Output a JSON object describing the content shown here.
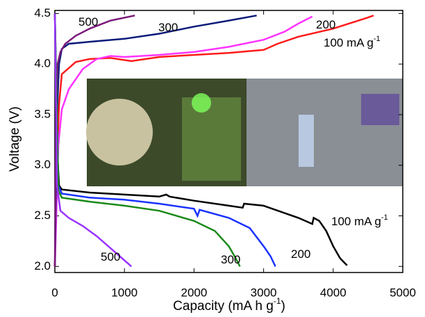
{
  "chart_data": {
    "type": "line",
    "x_label": {
      "text": "Capacity (mA h g",
      "sup": "-1",
      "tail": ")"
    },
    "y_label": "Voltage (V)",
    "xlim": [
      0,
      5000
    ],
    "xticks": [
      0,
      1000,
      2000,
      3000,
      4000,
      5000
    ],
    "ylim": [
      1.94,
      4.53
    ],
    "yticks": [
      {
        "value": 2,
        "label": "2.0"
      },
      {
        "value": 2.5,
        "label": "2.5"
      },
      {
        "value": 3,
        "label": "3.0"
      },
      {
        "value": 3.5,
        "label": "3.5"
      },
      {
        "value": 4,
        "label": "4.0"
      },
      {
        "value": 4.5,
        "label": "4.5"
      }
    ],
    "series": [
      {
        "color": "#ff1a1a",
        "x": [
          0,
          30,
          60,
          100,
          300,
          500,
          800,
          1100,
          1500,
          2000,
          2500,
          3000,
          3200,
          3500,
          4000,
          4500,
          4580
        ],
        "values": [
          2.0,
          3.0,
          3.6,
          3.9,
          4.02,
          4.05,
          4.06,
          4.03,
          4.07,
          4.09,
          4.11,
          4.14,
          4.2,
          4.27,
          4.35,
          4.46,
          4.48
        ]
      },
      {
        "color": "#ff33ff",
        "x": [
          0,
          50,
          100,
          200,
          400,
          600,
          800,
          1000,
          1500,
          2000,
          2500,
          3000,
          3300,
          3500,
          3700
        ],
        "values": [
          2.0,
          3.2,
          3.55,
          3.75,
          3.95,
          4.05,
          4.08,
          4.07,
          4.09,
          4.12,
          4.17,
          4.24,
          4.32,
          4.4,
          4.47
        ]
      },
      {
        "color": "#0a1a7a",
        "x": [
          0,
          30,
          60,
          100,
          200,
          500,
          1000,
          1500,
          2000,
          2500,
          2900
        ],
        "values": [
          2.0,
          3.5,
          4.0,
          4.15,
          4.2,
          4.22,
          4.25,
          4.3,
          4.37,
          4.43,
          4.48
        ]
      },
      {
        "color": "#7a1a7a",
        "x": [
          0,
          20,
          40,
          80,
          150,
          300,
          500,
          800,
          1150
        ],
        "values": [
          2.0,
          3.6,
          4.0,
          4.12,
          4.2,
          4.28,
          4.35,
          4.43,
          4.48
        ]
      },
      {
        "color": "#000000",
        "x": [
          0,
          30,
          60,
          100,
          500,
          1000,
          1500,
          1600,
          1650,
          2000,
          2500,
          2700,
          2720,
          3000,
          3500,
          3700,
          3720,
          3800,
          3900,
          4000,
          4100,
          4200
        ],
        "values": [
          4.5,
          3.2,
          2.8,
          2.76,
          2.73,
          2.71,
          2.69,
          2.71,
          2.69,
          2.65,
          2.6,
          2.58,
          2.62,
          2.6,
          2.48,
          2.42,
          2.48,
          2.45,
          2.35,
          2.2,
          2.08,
          2.01
        ]
      },
      {
        "color": "#1a33ff",
        "x": [
          0,
          50,
          100,
          500,
          1000,
          1500,
          2000,
          2050,
          2080,
          2500,
          2800,
          3000,
          3100,
          3170
        ],
        "values": [
          4.5,
          2.8,
          2.72,
          2.68,
          2.66,
          2.62,
          2.57,
          2.5,
          2.56,
          2.48,
          2.38,
          2.2,
          2.1,
          2.0
        ]
      },
      {
        "color": "#1a8a1a",
        "x": [
          0,
          50,
          100,
          500,
          1000,
          1500,
          2000,
          2300,
          2500,
          2600,
          2660
        ],
        "values": [
          4.5,
          2.75,
          2.68,
          2.64,
          2.6,
          2.55,
          2.45,
          2.35,
          2.2,
          2.08,
          2.0
        ]
      },
      {
        "color": "#9a33ff",
        "x": [
          0,
          30,
          80,
          200,
          400,
          600,
          800,
          1000,
          1100
        ],
        "values": [
          4.5,
          2.8,
          2.55,
          2.48,
          2.4,
          2.3,
          2.18,
          2.06,
          2.0
        ]
      }
    ],
    "annotations": [
      {
        "text": "500"
      },
      {
        "text": "300"
      },
      {
        "text": "200"
      },
      {
        "text": "100 mA g",
        "sup": "-1"
      },
      {
        "text": "500"
      },
      {
        "text": "300"
      },
      {
        "text": "200"
      },
      {
        "text": "100 mA g",
        "sup": "-1"
      }
    ]
  }
}
